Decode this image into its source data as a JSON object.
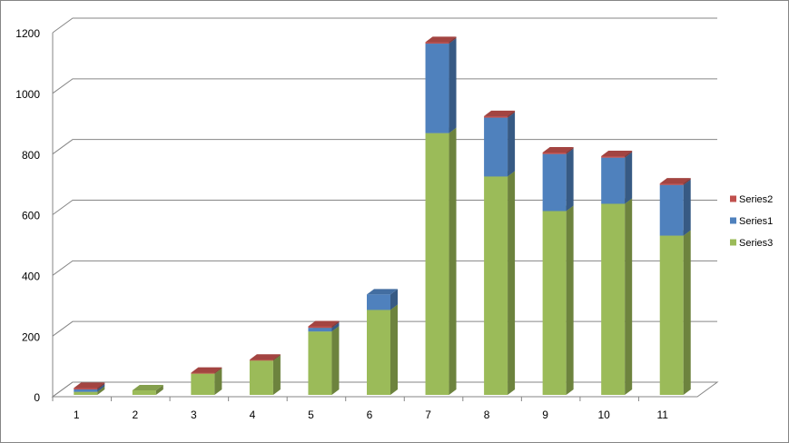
{
  "chart_data": {
    "type": "bar3d-stacked",
    "categories": [
      "1",
      "2",
      "3",
      "4",
      "5",
      "6",
      "7",
      "8",
      "9",
      "10",
      "11"
    ],
    "series": [
      {
        "name": "Series3",
        "color": "#9bbb59",
        "values": [
          10,
          15,
          70,
          113,
          209,
          280,
          863,
          720,
          606,
          630,
          525
        ]
      },
      {
        "name": "Series1",
        "color": "#4f81bd",
        "values": [
          8,
          0,
          0,
          0,
          12,
          51,
          295,
          194,
          188,
          152,
          167
        ]
      },
      {
        "name": "Series2",
        "color": "#c0504d",
        "values": [
          5,
          0,
          3,
          3,
          5,
          0,
          5,
          5,
          5,
          5,
          5
        ]
      }
    ],
    "ylim": [
      0,
      1200
    ],
    "yticks": [
      0,
      200,
      400,
      600,
      800,
      1000,
      1200
    ],
    "grid": true
  }
}
